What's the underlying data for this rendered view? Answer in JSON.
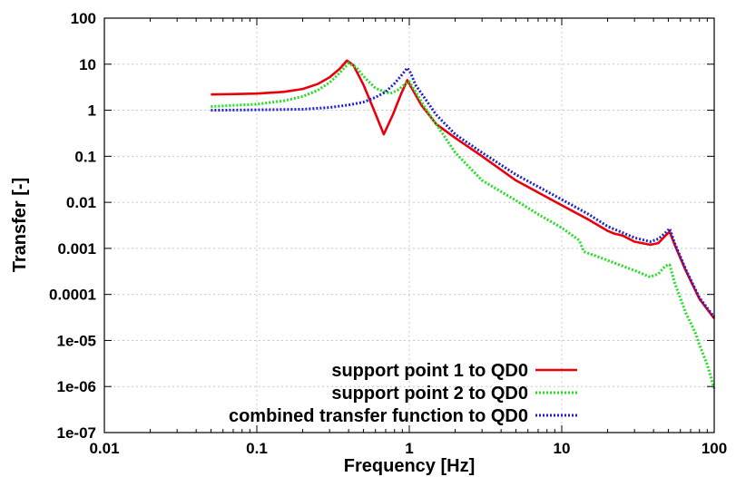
{
  "chart_data": {
    "type": "line",
    "xlabel": "Frequency [Hz]",
    "ylabel": "Transfer [-]",
    "xscale": "log",
    "yscale": "log",
    "xlim": [
      0.01,
      100
    ],
    "ylim": [
      1e-07,
      100
    ],
    "x_ticks": [
      "0.01",
      "0.1",
      "1",
      "10",
      "100"
    ],
    "y_ticks": [
      "1e-07",
      "1e-06",
      "1e-05",
      "0.0001",
      "0.001",
      "0.01",
      "0.1",
      "1",
      "10",
      "100"
    ],
    "grid": true,
    "legend_position": "bottom-right",
    "series": [
      {
        "name": "support point 1 to QD0",
        "color": "#e8000b",
        "style": "solid",
        "points": [
          [
            0.05,
            2.2
          ],
          [
            0.1,
            2.3
          ],
          [
            0.15,
            2.5
          ],
          [
            0.2,
            2.9
          ],
          [
            0.25,
            3.7
          ],
          [
            0.3,
            5.2
          ],
          [
            0.35,
            8.0
          ],
          [
            0.39,
            12.0
          ],
          [
            0.43,
            9.5
          ],
          [
            0.5,
            3.6
          ],
          [
            0.58,
            1.1
          ],
          [
            0.68,
            0.3
          ],
          [
            0.78,
            0.8
          ],
          [
            0.88,
            2.2
          ],
          [
            0.97,
            4.5
          ],
          [
            1.05,
            2.8
          ],
          [
            1.2,
            1.3
          ],
          [
            1.5,
            0.5
          ],
          [
            2,
            0.25
          ],
          [
            3,
            0.1
          ],
          [
            5,
            0.03
          ],
          [
            10,
            0.0086
          ],
          [
            15,
            0.0042
          ],
          [
            20,
            0.0024
          ],
          [
            22,
            0.0021
          ],
          [
            25,
            0.0019
          ],
          [
            30,
            0.0014
          ],
          [
            38,
            0.0012
          ],
          [
            43,
            0.0013
          ],
          [
            48,
            0.0019
          ],
          [
            51,
            0.0023
          ],
          [
            55,
            0.0012
          ],
          [
            65,
            0.00033
          ],
          [
            80,
            8e-05
          ],
          [
            100,
            3e-05
          ]
        ]
      },
      {
        "name": "support point 2 to QD0",
        "color": "#22dd22",
        "style": "dotted",
        "points": [
          [
            0.05,
            1.2
          ],
          [
            0.1,
            1.35
          ],
          [
            0.15,
            1.6
          ],
          [
            0.2,
            2.0
          ],
          [
            0.25,
            2.7
          ],
          [
            0.3,
            4.0
          ],
          [
            0.35,
            6.5
          ],
          [
            0.4,
            10.5
          ],
          [
            0.45,
            8.5
          ],
          [
            0.5,
            5.5
          ],
          [
            0.6,
            3.0
          ],
          [
            0.75,
            2.3
          ],
          [
            0.85,
            2.8
          ],
          [
            0.95,
            3.8
          ],
          [
            1.0,
            4.2
          ],
          [
            1.1,
            2.5
          ],
          [
            1.3,
            1.0
          ],
          [
            1.5,
            0.5
          ],
          [
            2,
            0.12
          ],
          [
            3,
            0.03
          ],
          [
            5,
            0.011
          ],
          [
            7,
            0.0055
          ],
          [
            10,
            0.0028
          ],
          [
            13,
            0.0015
          ],
          [
            14,
            0.00085
          ],
          [
            20,
            0.00055
          ],
          [
            30,
            0.00033
          ],
          [
            38,
            0.00024
          ],
          [
            43,
            0.00028
          ],
          [
            48,
            0.00042
          ],
          [
            51,
            0.00044
          ],
          [
            55,
            0.00018
          ],
          [
            65,
            4e-05
          ],
          [
            75,
            1.5e-05
          ],
          [
            80,
            8e-06
          ],
          [
            90,
            3e-06
          ],
          [
            100,
            9e-07
          ]
        ]
      },
      {
        "name": "combined transfer function to QD0",
        "color": "#2222cc",
        "style": "dotted",
        "points": [
          [
            0.05,
            1.0
          ],
          [
            0.1,
            1.02
          ],
          [
            0.2,
            1.05
          ],
          [
            0.3,
            1.15
          ],
          [
            0.4,
            1.3
          ],
          [
            0.5,
            1.5
          ],
          [
            0.6,
            1.9
          ],
          [
            0.7,
            2.5
          ],
          [
            0.8,
            3.8
          ],
          [
            0.9,
            6.0
          ],
          [
            0.97,
            8.3
          ],
          [
            1.02,
            6.5
          ],
          [
            1.1,
            3.5
          ],
          [
            1.3,
            1.6
          ],
          [
            1.5,
            0.8
          ],
          [
            2,
            0.3
          ],
          [
            3,
            0.12
          ],
          [
            5,
            0.04
          ],
          [
            10,
            0.0115
          ],
          [
            15,
            0.0055
          ],
          [
            20,
            0.003
          ],
          [
            25,
            0.0022
          ],
          [
            30,
            0.0017
          ],
          [
            38,
            0.0014
          ],
          [
            43,
            0.0016
          ],
          [
            48,
            0.0022
          ],
          [
            51,
            0.0027
          ],
          [
            55,
            0.0013
          ],
          [
            65,
            0.00035
          ],
          [
            80,
            8.5e-05
          ],
          [
            100,
            3.2e-05
          ]
        ]
      }
    ]
  }
}
